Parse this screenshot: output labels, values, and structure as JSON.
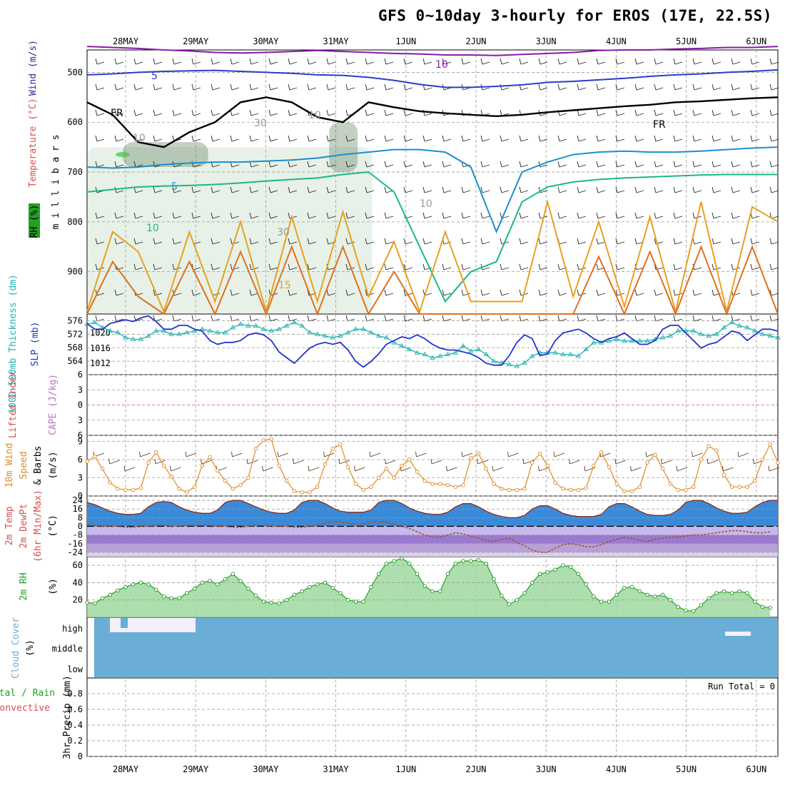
{
  "title": "GFS 0~10day 3-hourly for EROS (17E, 22.5S)",
  "dates": [
    "28MAY",
    "29MAY",
    "30MAY",
    "31MAY",
    "1JUN",
    "2JUN",
    "3JUN",
    "4JUN",
    "5JUN",
    "6JUN"
  ],
  "colors": {
    "wind_label": "#2a2aa0",
    "temp_label": "#d94f4f",
    "rh_label": "#22a022",
    "thickness": "#20b2b2",
    "slp": "#2233cc",
    "lifted": "#d94f4f",
    "cape": "#c070c0",
    "wind10m_label": "#e08a20",
    "rh2m_label": "#22a022",
    "cloud": "#6aaed6",
    "precip_total": "#22a022",
    "precip_conv": "#d94f4f"
  },
  "chart_data": [
    {
      "id": "upper_air",
      "type": "heatmap",
      "ylabel": "m i l l i b a r s",
      "side_labels": [
        "Wind (m/s)",
        "Temperature (°C)",
        "RH (%)"
      ],
      "y_ticks": [
        500,
        600,
        700,
        800,
        900
      ],
      "ylim": [
        455,
        985
      ],
      "annotations": [
        "10",
        "5",
        "5",
        "10",
        "15",
        "FR",
        "FR",
        "30",
        "10",
        "30",
        "10",
        "10"
      ],
      "contours": [
        {
          "name": "-10",
          "color": "#8a1aa8",
          "y": [
            448,
            450,
            452,
            455,
            457,
            460,
            461,
            460,
            458,
            456,
            458,
            460,
            462,
            463,
            465,
            465,
            466,
            464,
            462,
            460,
            456,
            455,
            455,
            453,
            452,
            450,
            450,
            448
          ]
        },
        {
          "name": "-5",
          "color": "#2a3ccc",
          "y": [
            505,
            503,
            500,
            498,
            497,
            496,
            498,
            500,
            502,
            505,
            506,
            510,
            516,
            524,
            530,
            530,
            528,
            525,
            520,
            518,
            515,
            512,
            508,
            505,
            503,
            500,
            498,
            495
          ]
        },
        {
          "name": "FR",
          "color": "#000000",
          "y": [
            560,
            585,
            640,
            650,
            620,
            600,
            560,
            550,
            560,
            590,
            600,
            560,
            570,
            578,
            582,
            585,
            588,
            585,
            580,
            576,
            572,
            568,
            565,
            560,
            558,
            555,
            552,
            550
          ]
        },
        {
          "name": "5",
          "color": "#1a8fd0",
          "y": [
            690,
            692,
            690,
            685,
            682,
            680,
            680,
            678,
            676,
            672,
            665,
            660,
            655,
            655,
            660,
            690,
            820,
            700,
            680,
            665,
            660,
            658,
            660,
            660,
            658,
            655,
            652,
            650
          ]
        },
        {
          "name": "10",
          "color": "#18b88a",
          "y": [
            740,
            735,
            730,
            728,
            727,
            725,
            722,
            718,
            715,
            712,
            705,
            700,
            740,
            850,
            960,
            900,
            880,
            760,
            730,
            720,
            715,
            712,
            710,
            708,
            706,
            705,
            705,
            705
          ]
        },
        {
          "name": "15",
          "color": "#e8a020",
          "y": [
            980,
            820,
            860,
            980,
            820,
            960,
            800,
            980,
            790,
            960,
            780,
            950,
            840,
            980,
            820,
            960,
            960,
            960,
            760,
            950,
            800,
            970,
            790,
            980,
            760,
            980,
            770,
            800
          ]
        },
        {
          "name": "20",
          "color": "#e07020",
          "y": [
            990,
            880,
            950,
            990,
            880,
            990,
            860,
            990,
            850,
            990,
            850,
            990,
            900,
            990,
            990,
            990,
            990,
            990,
            990,
            990,
            870,
            990,
            860,
            990,
            850,
            990,
            850,
            990
          ]
        }
      ],
      "rh_shading": [
        {
          "level": "50",
          "x": [
            27.5,
            31.5
          ],
          "y": [
            650,
            985
          ]
        },
        {
          "level": "70",
          "x": [
            28.0,
            29.2
          ],
          "y": [
            640,
            690
          ]
        },
        {
          "level": "70",
          "x": [
            30.9,
            31.3
          ],
          "y": [
            600,
            700
          ]
        },
        {
          "level": "90",
          "x": [
            27.9,
            28.1
          ],
          "y": [
            660,
            670
          ]
        }
      ]
    },
    {
      "id": "thickness_slp",
      "type": "line",
      "ylabel": "1000-500mb Thickness (dm)",
      "y2label": "SLP (mb)",
      "y_ticks": [
        564,
        568,
        572,
        576
      ],
      "y2_ticks": [
        1012,
        1016,
        1020
      ],
      "ylim": [
        560,
        578
      ],
      "y2lim": [
        1009,
        1025
      ],
      "series": [
        {
          "name": "1000-500mb Thickness",
          "axis": "left",
          "color": "#20b2b2",
          "values": [
            575.0,
            575.5,
            574.0,
            573.0,
            572.5,
            571.0,
            570.5,
            570.5,
            571.5,
            573.0,
            573.0,
            572.0,
            572.0,
            572.5,
            573.0,
            573.5,
            573.0,
            572.5,
            572.5,
            574.0,
            575.0,
            574.5,
            574.5,
            573.5,
            573.0,
            573.5,
            574.5,
            575.5,
            574.5,
            572.5,
            572.0,
            571.5,
            571.0,
            571.5,
            572.5,
            573.5,
            573.5,
            572.5,
            571.5,
            571.0,
            569.5,
            568.5,
            567.5,
            566.5,
            566.0,
            565.0,
            565.5,
            566.0,
            566.5,
            568.5,
            567.0,
            567.5,
            566.0,
            564.0,
            563.5,
            563.0,
            562.5,
            563.5,
            565.5,
            566.5,
            566.5,
            566.5,
            566.0,
            566.0,
            565.5,
            567.5,
            569.5,
            569.5,
            570.0,
            570.5,
            570.0,
            570.0,
            570.0,
            570.0,
            570.5,
            571.0,
            571.5,
            573.0,
            573.0,
            573.0,
            572.0,
            571.5,
            572.0,
            574.0,
            575.5,
            574.5,
            574.0,
            573.0,
            572.0,
            571.5,
            571.0
          ]
        },
        {
          "name": "SLP",
          "axis": "right",
          "color": "#2233cc",
          "values": [
            1022.5,
            1021.0,
            1021.0,
            1022.5,
            1023.0,
            1023.5,
            1023.0,
            1024.0,
            1024.5,
            1023.0,
            1021.0,
            1021.0,
            1022.0,
            1022.0,
            1021.0,
            1020.5,
            1018.0,
            1017.0,
            1017.5,
            1017.5,
            1018.0,
            1019.5,
            1020.0,
            1019.5,
            1018.0,
            1015.0,
            1013.5,
            1012.0,
            1014.0,
            1016.0,
            1017.0,
            1017.5,
            1017.0,
            1017.5,
            1015.5,
            1012.5,
            1011.0,
            1012.5,
            1014.5,
            1017.0,
            1018.0,
            1019.0,
            1018.5,
            1019.5,
            1018.5,
            1017.0,
            1016.0,
            1015.5,
            1015.5,
            1015.0,
            1014.5,
            1013.5,
            1012.0,
            1011.5,
            1011.5,
            1014.0,
            1017.5,
            1019.5,
            1018.5,
            1014.0,
            1014.5,
            1018.0,
            1020.0,
            1020.5,
            1021.0,
            1020.0,
            1018.5,
            1017.5,
            1018.5,
            1019.0,
            1020.0,
            1018.5,
            1017.0,
            1017.0,
            1018.0,
            1021.0,
            1022.0,
            1022.0,
            1020.0,
            1018.0,
            1016.0,
            1017.0,
            1017.5,
            1019.0,
            1020.5,
            1020.0,
            1018.0,
            1019.5,
            1021.0,
            1021.0,
            1020.5
          ]
        }
      ]
    },
    {
      "id": "lifted_cape",
      "type": "line",
      "ylabel": "Lifted Index",
      "y2label": "CAPE (J/kg)",
      "y_ticks": [
        -6,
        -3,
        0,
        3,
        6
      ],
      "y_tick_labels": [
        "6",
        "3",
        "0",
        "3",
        "6"
      ],
      "ylim": [
        -6,
        6
      ],
      "series": [
        {
          "name": "Lifted Index",
          "color": "#d94f4f",
          "values": []
        }
      ]
    },
    {
      "id": "wind10m",
      "type": "line",
      "ylabel": "10m Wind Speed & Barbs (m/s)",
      "y_ticks": [
        0,
        3,
        6,
        9
      ],
      "ylim": [
        0,
        10
      ],
      "series": [
        {
          "name": "10m Wind Speed",
          "color": "#e08a20",
          "values": [
            5.7,
            6.5,
            4.5,
            2.2,
            1.2,
            1.0,
            1.0,
            1.3,
            5.5,
            7.2,
            5.0,
            3.2,
            1.2,
            0.6,
            1.5,
            5.0,
            6.4,
            4.2,
            2.5,
            1.2,
            1.8,
            3.0,
            7.8,
            9.2,
            9.4,
            5.0,
            2.5,
            0.8,
            0.6,
            0.6,
            1.5,
            5.2,
            7.8,
            8.5,
            4.8,
            2.0,
            1.0,
            1.5,
            3.0,
            4.5,
            3.0,
            5.0,
            6.0,
            4.0,
            2.5,
            2.0,
            2.0,
            1.8,
            1.5,
            1.8,
            6.2,
            7.0,
            4.5,
            2.0,
            1.2,
            1.0,
            1.0,
            1.2,
            5.5,
            7.0,
            5.0,
            2.2,
            1.2,
            1.0,
            1.0,
            1.3,
            5.0,
            7.2,
            4.8,
            2.0,
            0.8,
            0.8,
            1.5,
            5.5,
            6.8,
            4.5,
            2.0,
            1.0,
            1.0,
            1.5,
            6.0,
            8.2,
            7.5,
            3.5,
            1.5,
            1.5,
            1.5,
            2.5,
            6.0,
            8.5,
            5.5
          ]
        }
      ]
    },
    {
      "id": "temp2m",
      "type": "area",
      "ylabel": "2m Temp 2m DewPt (6hr Min/Max) (°C)",
      "y_ticks": [
        -24,
        -16,
        -8,
        0,
        8,
        16,
        24
      ],
      "ylim": [
        -28,
        28
      ],
      "series": [
        {
          "name": "2m Temp",
          "color": "#8b2a1a",
          "values": [
            22,
            20,
            17,
            14,
            12,
            11,
            11,
            12,
            18,
            22,
            23,
            22,
            18,
            15,
            13,
            12,
            12,
            15,
            22,
            24,
            24,
            21,
            18,
            15,
            13,
            12,
            12,
            15,
            22,
            24,
            24,
            21,
            17,
            14,
            13,
            13,
            13,
            15,
            22,
            24,
            24,
            21,
            17,
            14,
            12,
            11,
            11,
            13,
            18,
            21,
            21,
            18,
            14,
            11,
            9,
            8,
            8,
            10,
            16,
            19,
            19,
            16,
            12,
            10,
            9,
            9,
            9,
            11,
            18,
            21,
            21,
            18,
            14,
            11,
            10,
            10,
            11,
            15,
            22,
            24,
            24,
            21,
            17,
            14,
            12,
            12,
            13,
            18,
            22,
            24,
            24
          ]
        },
        {
          "name": "2m DewPt",
          "color": "#a0522d",
          "values": [
            1,
            1,
            0,
            0,
            0,
            -1,
            -1,
            0,
            0,
            1,
            1,
            0,
            0,
            1,
            1,
            1,
            1,
            0,
            0,
            -1,
            -1,
            0,
            1,
            1,
            0,
            0,
            0,
            -1,
            -1,
            0,
            1,
            3,
            4,
            4,
            3,
            2,
            2,
            4,
            4,
            4,
            2,
            0,
            -2,
            -5,
            -8,
            -10,
            -10,
            -8,
            -6,
            -7,
            -9,
            -11,
            -13,
            -14,
            -12,
            -11,
            -15,
            -18,
            -22,
            -24,
            -24,
            -20,
            -17,
            -16,
            -17,
            -19,
            -19,
            -17,
            -14,
            -12,
            -10,
            -11,
            -13,
            -14,
            -12,
            -11,
            -10,
            -10,
            -9,
            -8,
            -8,
            -7,
            -6,
            -5,
            -4,
            -4,
            -5,
            -6,
            -6,
            -5
          ]
        }
      ]
    },
    {
      "id": "rh2m",
      "type": "area",
      "ylabel": "2m RH (%)",
      "y_ticks": [
        20,
        40,
        60
      ],
      "ylim": [
        0,
        70
      ],
      "series": [
        {
          "name": "2m RH",
          "color": "#1a9a1a",
          "values": [
            17,
            16,
            22,
            26,
            31,
            35,
            38,
            40,
            38,
            32,
            24,
            22,
            22,
            28,
            33,
            40,
            42,
            38,
            44,
            50,
            42,
            33,
            25,
            18,
            17,
            16,
            20,
            26,
            30,
            35,
            38,
            40,
            34,
            28,
            20,
            18,
            18,
            35,
            50,
            62,
            65,
            68,
            62,
            50,
            36,
            30,
            30,
            50,
            62,
            65,
            65,
            66,
            62,
            44,
            25,
            15,
            20,
            28,
            40,
            50,
            52,
            55,
            60,
            58,
            50,
            38,
            24,
            18,
            18,
            26,
            34,
            35,
            30,
            26,
            24,
            26,
            20,
            12,
            8,
            7,
            14,
            22,
            28,
            30,
            28,
            30,
            28,
            18,
            12,
            11
          ]
        }
      ]
    },
    {
      "id": "cloud_cover",
      "type": "area",
      "ylabel": "Cloud Cover (%)",
      "level_labels": [
        "high",
        "middle",
        "low"
      ],
      "series": [
        {
          "name": "Cloud Cover",
          "color": "#6aaed6",
          "values": [
            100
          ]
        }
      ]
    },
    {
      "id": "precip",
      "type": "bar",
      "ylabel": "3hr Precip (mm)",
      "side_labels": [
        "Total / Rain",
        "Convective"
      ],
      "y_ticks": [
        0,
        0.2,
        0.4,
        0.6,
        0.8
      ],
      "ylim": [
        0,
        1.0
      ],
      "annotation": "Run Total = 0",
      "series": [
        {
          "name": "Total / Rain",
          "values": []
        }
      ]
    }
  ]
}
